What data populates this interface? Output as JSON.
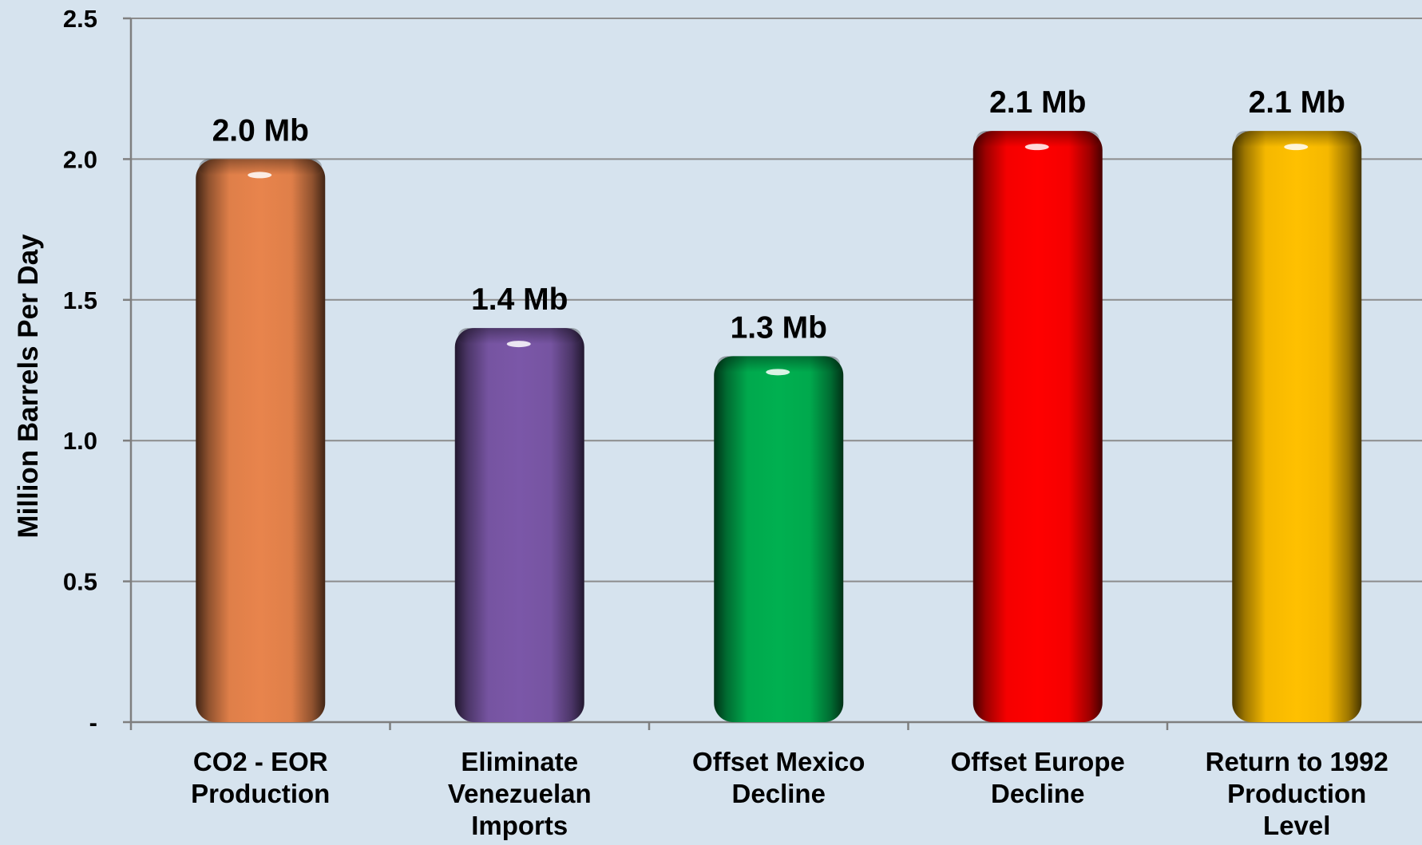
{
  "chart_data": {
    "type": "bar",
    "title": "",
    "xlabel": "",
    "ylabel": "Million Barrels Per Day",
    "ylim": [
      0,
      2.5
    ],
    "grid": true,
    "legend": "none",
    "yticks": [
      {
        "value": 0,
        "label": "-"
      },
      {
        "value": 0.5,
        "label": "0.5"
      },
      {
        "value": 1.0,
        "label": "1.0"
      },
      {
        "value": 1.5,
        "label": "1.5"
      },
      {
        "value": 2.0,
        "label": "2.0"
      },
      {
        "value": 2.5,
        "label": "2.5"
      }
    ],
    "categories": [
      [
        "CO2 - EOR",
        "Production"
      ],
      [
        "Eliminate",
        "Venezuelan",
        "Imports"
      ],
      [
        "Offset Mexico",
        "Decline"
      ],
      [
        "Offset Europe",
        "Decline"
      ],
      [
        "Return to 1992",
        "Production",
        "Level"
      ]
    ],
    "values": [
      2.0,
      1.4,
      1.3,
      2.1,
      2.1
    ],
    "data_labels": [
      "2.0 Mb",
      "1.4 Mb",
      "1.3 Mb",
      "2.1 Mb",
      "2.1 Mb"
    ],
    "colors": [
      "#e8844c",
      "#7b57a8",
      "#00b050",
      "#ff0000",
      "#ffc000"
    ]
  }
}
